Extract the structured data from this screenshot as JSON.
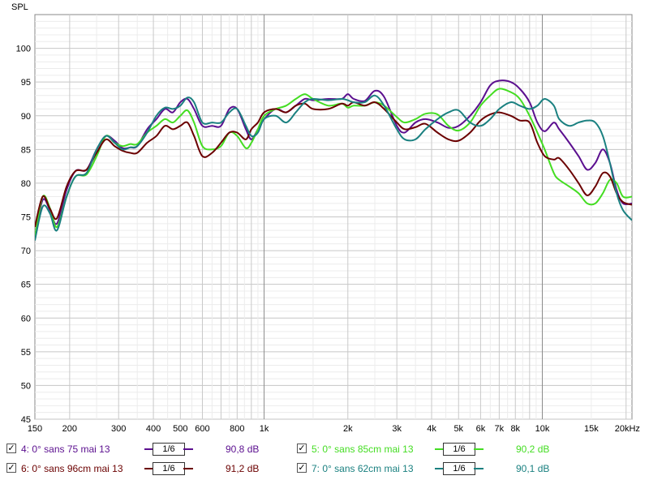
{
  "chart_data": {
    "type": "line",
    "ylabel": "SPL",
    "xscale": "log",
    "xlim": [
      150,
      21000
    ],
    "ylim": [
      45,
      105
    ],
    "grid": true,
    "x_tick_labels": [
      {
        "v": 150,
        "t": "150"
      },
      {
        "v": 200,
        "t": "200"
      },
      {
        "v": 300,
        "t": "300"
      },
      {
        "v": 400,
        "t": "400"
      },
      {
        "v": 500,
        "t": "500"
      },
      {
        "v": 600,
        "t": "600"
      },
      {
        "v": 800,
        "t": "800"
      },
      {
        "v": 1000,
        "t": "1k"
      },
      {
        "v": 2000,
        "t": "2k"
      },
      {
        "v": 3000,
        "t": "3k"
      },
      {
        "v": 4000,
        "t": "4k"
      },
      {
        "v": 5000,
        "t": "5k"
      },
      {
        "v": 6000,
        "t": "6k"
      },
      {
        "v": 7000,
        "t": "7k"
      },
      {
        "v": 8000,
        "t": "8k"
      },
      {
        "v": 10000,
        "t": "10k"
      },
      {
        "v": 15000,
        "t": "15k"
      },
      {
        "v": 20000,
        "t": "20kHz"
      }
    ],
    "y_ticks": [
      45,
      50,
      55,
      60,
      65,
      70,
      75,
      80,
      85,
      90,
      95,
      100
    ],
    "series": [
      {
        "name": "4: 0° sans 75 mai 13",
        "color": "#5b0f8f",
        "smoothing": "1/6",
        "avg": "90,8 dB",
        "points": [
          [
            150,
            72
          ],
          [
            160,
            77.5
          ],
          [
            170,
            76
          ],
          [
            180,
            74
          ],
          [
            195,
            79
          ],
          [
            210,
            81.8
          ],
          [
            230,
            82
          ],
          [
            250,
            85
          ],
          [
            270,
            87
          ],
          [
            290,
            86.3
          ],
          [
            310,
            85.2
          ],
          [
            330,
            85.3
          ],
          [
            350,
            85.5
          ],
          [
            380,
            88
          ],
          [
            410,
            89.5
          ],
          [
            440,
            91
          ],
          [
            470,
            90.5
          ],
          [
            500,
            92
          ],
          [
            530,
            92.5
          ],
          [
            560,
            91
          ],
          [
            600,
            88.5
          ],
          [
            650,
            88.5
          ],
          [
            700,
            88.5
          ],
          [
            750,
            91
          ],
          [
            800,
            91
          ],
          [
            860,
            88
          ],
          [
            900,
            86.5
          ],
          [
            950,
            88
          ],
          [
            1000,
            89.5
          ],
          [
            1100,
            91
          ],
          [
            1200,
            90.5
          ],
          [
            1300,
            91.5
          ],
          [
            1400,
            92.5
          ],
          [
            1500,
            92.3
          ],
          [
            1700,
            92.5
          ],
          [
            1900,
            92.5
          ],
          [
            2000,
            93.2
          ],
          [
            2100,
            92.5
          ],
          [
            2300,
            92.2
          ],
          [
            2500,
            93.7
          ],
          [
            2700,
            92.8
          ],
          [
            3000,
            88.5
          ],
          [
            3200,
            87.5
          ],
          [
            3500,
            89
          ],
          [
            3800,
            89.5
          ],
          [
            4200,
            89
          ],
          [
            4600,
            88.2
          ],
          [
            5000,
            88.5
          ],
          [
            5500,
            90
          ],
          [
            6000,
            92
          ],
          [
            6500,
            94.5
          ],
          [
            7000,
            95.2
          ],
          [
            7700,
            95
          ],
          [
            8300,
            94
          ],
          [
            9000,
            92
          ],
          [
            9600,
            89
          ],
          [
            10200,
            87.7
          ],
          [
            11000,
            89
          ],
          [
            11500,
            88
          ],
          [
            12500,
            86
          ],
          [
            13500,
            84
          ],
          [
            14500,
            82
          ],
          [
            15500,
            83
          ],
          [
            16500,
            85
          ],
          [
            17500,
            83
          ],
          [
            18500,
            79
          ],
          [
            19500,
            77
          ],
          [
            21000,
            77
          ]
        ]
      },
      {
        "name": "5: 0° sans 85cm mai 13",
        "color": "#44dd22",
        "smoothing": "1/6",
        "avg": "90,2 dB",
        "points": [
          [
            150,
            72
          ],
          [
            160,
            78
          ],
          [
            170,
            76.3
          ],
          [
            180,
            73.5
          ],
          [
            195,
            78
          ],
          [
            210,
            81
          ],
          [
            230,
            81.3
          ],
          [
            250,
            84
          ],
          [
            270,
            87
          ],
          [
            290,
            86
          ],
          [
            310,
            85.5
          ],
          [
            330,
            85.8
          ],
          [
            350,
            85.8
          ],
          [
            380,
            87.5
          ],
          [
            410,
            88.5
          ],
          [
            440,
            89.5
          ],
          [
            470,
            89
          ],
          [
            500,
            90
          ],
          [
            530,
            90.8
          ],
          [
            560,
            89
          ],
          [
            600,
            85.5
          ],
          [
            650,
            85
          ],
          [
            700,
            85.5
          ],
          [
            750,
            87.5
          ],
          [
            800,
            87
          ],
          [
            860,
            85.2
          ],
          [
            900,
            86
          ],
          [
            950,
            88
          ],
          [
            1000,
            90
          ],
          [
            1100,
            91
          ],
          [
            1200,
            91.5
          ],
          [
            1300,
            92.5
          ],
          [
            1400,
            93.2
          ],
          [
            1500,
            92.5
          ],
          [
            1700,
            91.5
          ],
          [
            1900,
            91.8
          ],
          [
            2000,
            91.2
          ],
          [
            2100,
            91.5
          ],
          [
            2300,
            91.5
          ],
          [
            2500,
            92
          ],
          [
            2700,
            91.5
          ],
          [
            3000,
            89.8
          ],
          [
            3200,
            89
          ],
          [
            3500,
            89.5
          ],
          [
            3800,
            90.3
          ],
          [
            4200,
            90.2
          ],
          [
            4600,
            88.5
          ],
          [
            5000,
            87.8
          ],
          [
            5500,
            89
          ],
          [
            6000,
            91.5
          ],
          [
            6500,
            93
          ],
          [
            7000,
            94
          ],
          [
            7700,
            93.5
          ],
          [
            8300,
            92.5
          ],
          [
            9000,
            90
          ],
          [
            9600,
            87.5
          ],
          [
            10200,
            85
          ],
          [
            11000,
            81.5
          ],
          [
            11500,
            80.5
          ],
          [
            12500,
            79.5
          ],
          [
            13500,
            78.5
          ],
          [
            14500,
            77
          ],
          [
            15500,
            77
          ],
          [
            16500,
            78.5
          ],
          [
            17500,
            80.5
          ],
          [
            18500,
            80
          ],
          [
            19500,
            78
          ],
          [
            21000,
            78
          ]
        ]
      },
      {
        "name": "6: 0° sans 96cm mai 13",
        "color": "#6b0000",
        "smoothing": "1/6",
        "avg": "91,2 dB",
        "points": [
          [
            150,
            73.5
          ],
          [
            160,
            78
          ],
          [
            170,
            76.2
          ],
          [
            180,
            74.8
          ],
          [
            195,
            79.5
          ],
          [
            210,
            81.8
          ],
          [
            230,
            82
          ],
          [
            250,
            84.5
          ],
          [
            270,
            86.5
          ],
          [
            290,
            85.5
          ],
          [
            310,
            84.8
          ],
          [
            330,
            84.5
          ],
          [
            350,
            84.5
          ],
          [
            380,
            86
          ],
          [
            410,
            87
          ],
          [
            440,
            88.5
          ],
          [
            470,
            88
          ],
          [
            500,
            88.5
          ],
          [
            530,
            89
          ],
          [
            560,
            87
          ],
          [
            600,
            84
          ],
          [
            650,
            84.5
          ],
          [
            700,
            86
          ],
          [
            750,
            87.5
          ],
          [
            800,
            87.5
          ],
          [
            860,
            86.5
          ],
          [
            900,
            88
          ],
          [
            950,
            89
          ],
          [
            1000,
            90.5
          ],
          [
            1100,
            91
          ],
          [
            1200,
            90.5
          ],
          [
            1300,
            91.5
          ],
          [
            1400,
            91.8
          ],
          [
            1500,
            91
          ],
          [
            1700,
            91
          ],
          [
            1900,
            91.8
          ],
          [
            2000,
            91.5
          ],
          [
            2100,
            92
          ],
          [
            2300,
            91.5
          ],
          [
            2500,
            92
          ],
          [
            2700,
            91
          ],
          [
            3000,
            89
          ],
          [
            3200,
            88
          ],
          [
            3500,
            88.3
          ],
          [
            3800,
            88.8
          ],
          [
            4200,
            87.5
          ],
          [
            4600,
            86.5
          ],
          [
            5000,
            86.3
          ],
          [
            5500,
            87.5
          ],
          [
            6000,
            89.3
          ],
          [
            6500,
            90.2
          ],
          [
            7000,
            90.5
          ],
          [
            7700,
            90
          ],
          [
            8300,
            89.3
          ],
          [
            9000,
            89
          ],
          [
            9600,
            86
          ],
          [
            10200,
            84
          ],
          [
            11000,
            83.5
          ],
          [
            11500,
            83.7
          ],
          [
            12500,
            82
          ],
          [
            13500,
            80
          ],
          [
            14500,
            78.2
          ],
          [
            15500,
            79.5
          ],
          [
            16500,
            81.5
          ],
          [
            17500,
            81
          ],
          [
            18500,
            78.5
          ],
          [
            19500,
            77.2
          ],
          [
            21000,
            76.8
          ]
        ]
      },
      {
        "name": "7: 0° sans 62cm mai 13",
        "color": "#1a8080",
        "smoothing": "1/6",
        "avg": "90,1 dB",
        "points": [
          [
            150,
            71.5
          ],
          [
            160,
            76.5
          ],
          [
            170,
            75.5
          ],
          [
            180,
            73
          ],
          [
            195,
            78
          ],
          [
            210,
            81
          ],
          [
            230,
            81.5
          ],
          [
            250,
            85
          ],
          [
            270,
            87
          ],
          [
            290,
            86
          ],
          [
            310,
            85
          ],
          [
            330,
            85.3
          ],
          [
            350,
            85.5
          ],
          [
            380,
            87.5
          ],
          [
            410,
            90
          ],
          [
            440,
            91.2
          ],
          [
            470,
            91
          ],
          [
            500,
            91.5
          ],
          [
            530,
            92.7
          ],
          [
            560,
            92
          ],
          [
            600,
            89
          ],
          [
            650,
            89
          ],
          [
            700,
            89
          ],
          [
            750,
            90.5
          ],
          [
            800,
            91
          ],
          [
            860,
            88.5
          ],
          [
            900,
            87
          ],
          [
            950,
            87.5
          ],
          [
            1000,
            89.5
          ],
          [
            1100,
            90
          ],
          [
            1200,
            89
          ],
          [
            1300,
            90.5
          ],
          [
            1400,
            92
          ],
          [
            1500,
            92.5
          ],
          [
            1700,
            92.3
          ],
          [
            1900,
            92.5
          ],
          [
            2000,
            92.3
          ],
          [
            2100,
            92
          ],
          [
            2300,
            92
          ],
          [
            2500,
            93
          ],
          [
            2700,
            91.5
          ],
          [
            3000,
            88
          ],
          [
            3200,
            86.5
          ],
          [
            3500,
            86.5
          ],
          [
            3800,
            88
          ],
          [
            4200,
            89.5
          ],
          [
            4600,
            90.5
          ],
          [
            5000,
            90.8
          ],
          [
            5500,
            89
          ],
          [
            6000,
            88.5
          ],
          [
            6500,
            89.5
          ],
          [
            7000,
            91
          ],
          [
            7700,
            92
          ],
          [
            8300,
            91.5
          ],
          [
            9000,
            91
          ],
          [
            9600,
            91.5
          ],
          [
            10200,
            92.5
          ],
          [
            11000,
            91.5
          ],
          [
            11500,
            89.5
          ],
          [
            12500,
            88.5
          ],
          [
            13500,
            89
          ],
          [
            14500,
            89.3
          ],
          [
            15500,
            89
          ],
          [
            16500,
            87
          ],
          [
            17500,
            83
          ],
          [
            18500,
            78.5
          ],
          [
            19500,
            76
          ],
          [
            21000,
            74.5
          ]
        ]
      }
    ]
  }
}
